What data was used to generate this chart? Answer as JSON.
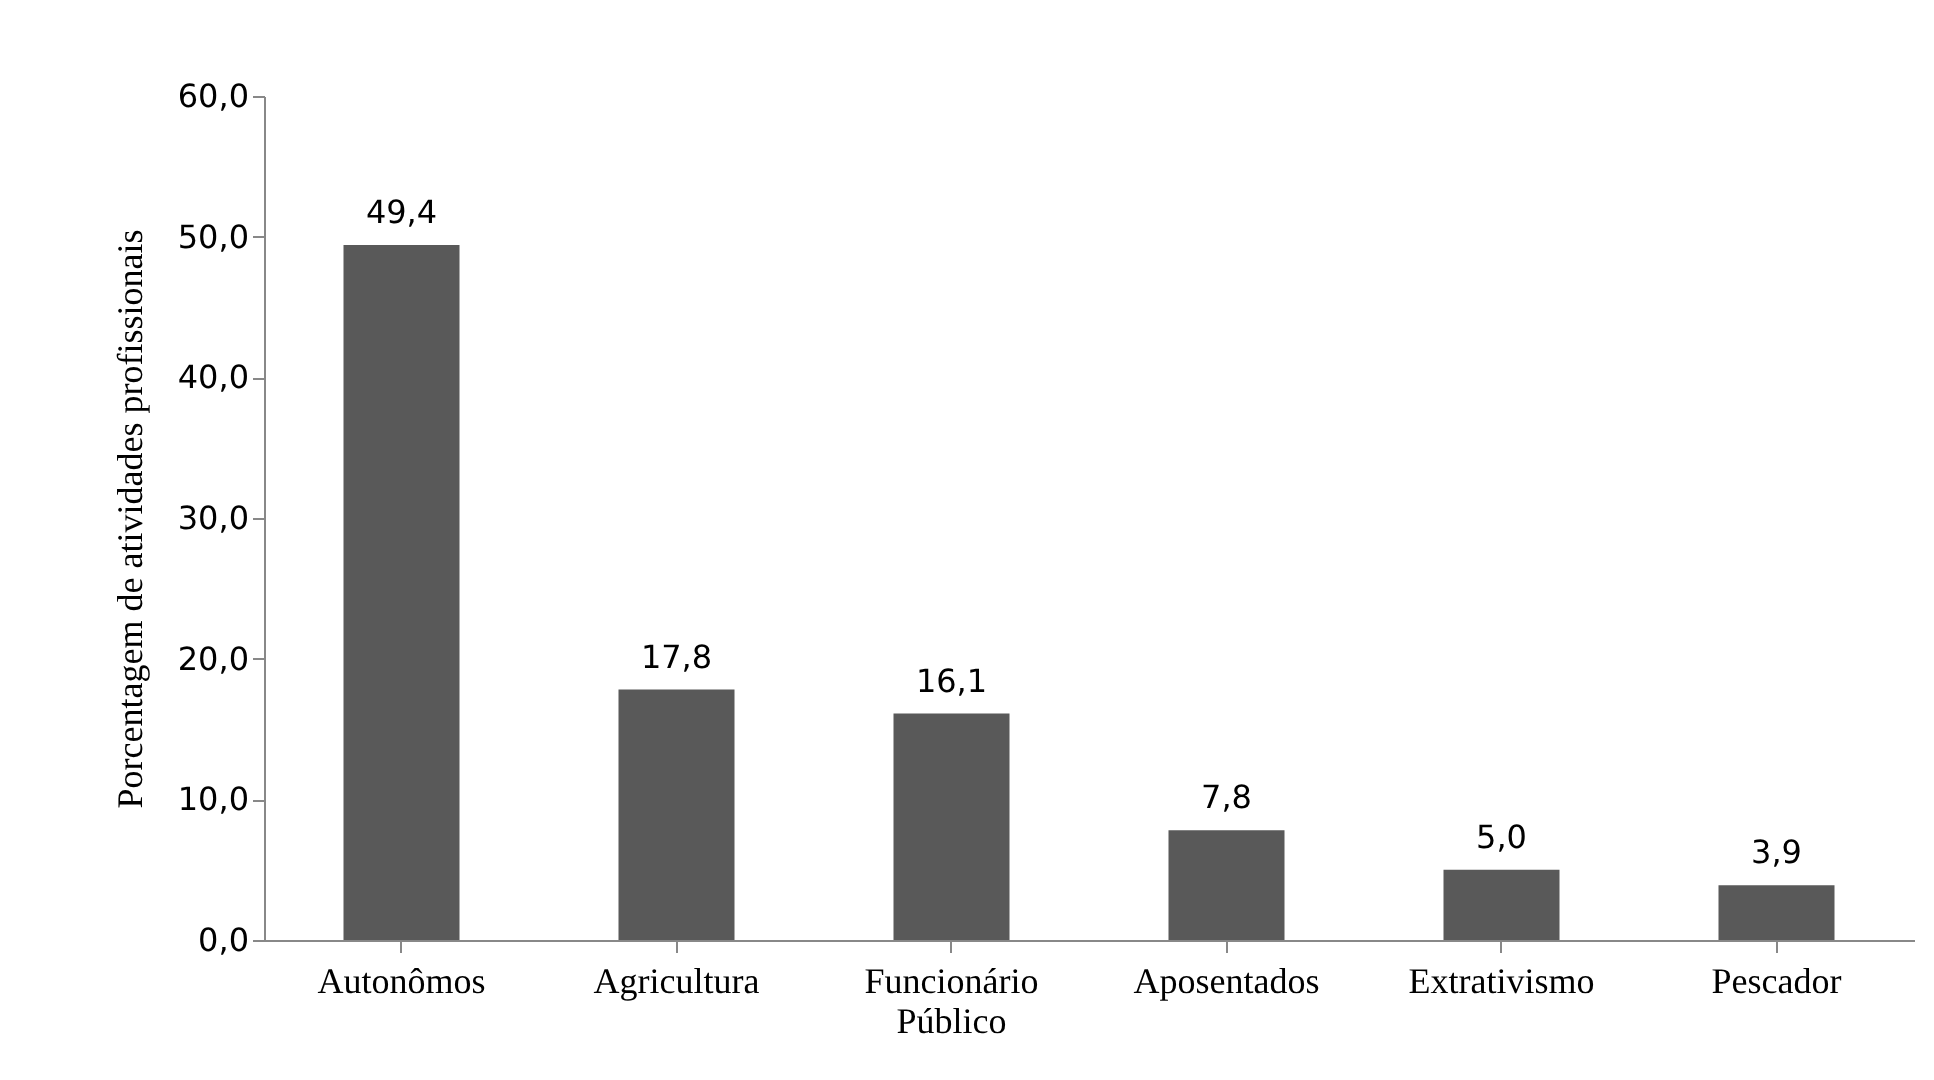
{
  "chart_data": {
    "type": "bar",
    "ylabel": "Porcentagem de atividades profissionais",
    "categories": [
      "Autonômos",
      "Agricultura",
      "Funcionário\nPúblico",
      "Aposentados",
      "Extrativismo",
      "Pescador"
    ],
    "values": [
      49.4,
      17.8,
      16.1,
      7.8,
      5.0,
      3.9
    ],
    "value_labels": [
      "49,4",
      "17,8",
      "16,1",
      "7,8",
      "5,0",
      "3,9"
    ],
    "color": "#595959",
    "ylim": [
      0,
      60
    ],
    "yticks": [
      {
        "value": 0,
        "label": "0,0"
      },
      {
        "value": 10,
        "label": "10,0"
      },
      {
        "value": 20,
        "label": "20,0"
      },
      {
        "value": 30,
        "label": "30,0"
      },
      {
        "value": 40,
        "label": "40,0"
      },
      {
        "value": 50,
        "label": "50,0"
      },
      {
        "value": 60,
        "label": "60,0"
      }
    ],
    "grid": false
  }
}
